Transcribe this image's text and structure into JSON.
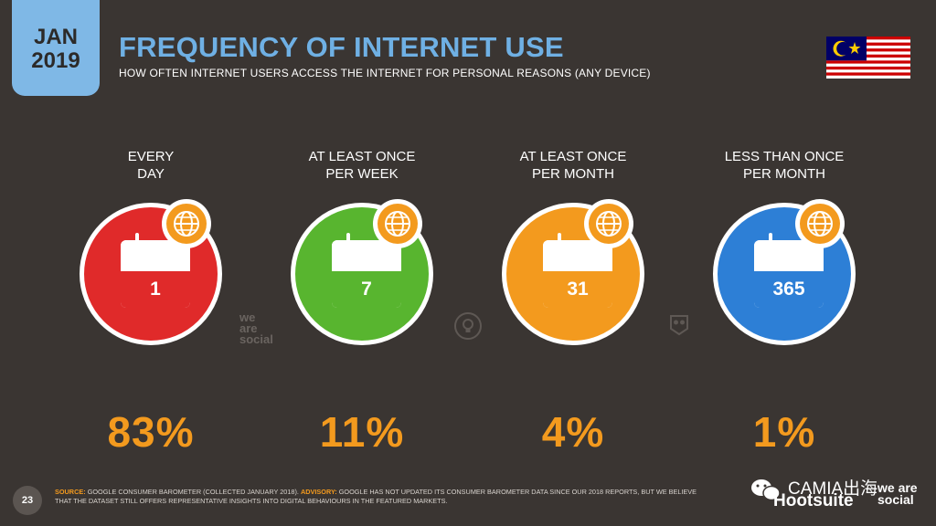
{
  "header": {
    "date_month": "JAN",
    "date_year": "2019",
    "title": "FREQUENCY OF INTERNET USE",
    "subtitle": "HOW OFTEN INTERNET USERS ACCESS THE INTERNET FOR PERSONAL REASONS (ANY DEVICE)"
  },
  "colors": {
    "background": "#3a3532",
    "accent_orange": "#f39a1e",
    "title_blue": "#6fb0e4"
  },
  "flag_icon": "malaysia-flag",
  "categories": [
    {
      "label_line1": "EVERY",
      "label_line2": "DAY",
      "calendar_value": "1",
      "percent": "83%",
      "color": "#e02a2a",
      "icon": "calendar-icon"
    },
    {
      "label_line1": "AT LEAST ONCE",
      "label_line2": "PER WEEK",
      "calendar_value": "7",
      "percent": "11%",
      "color": "#58b52f",
      "icon": "calendar-icon"
    },
    {
      "label_line1": "AT LEAST ONCE",
      "label_line2": "PER MONTH",
      "calendar_value": "31",
      "percent": "4%",
      "color": "#f39a1e",
      "icon": "calendar-icon"
    },
    {
      "label_line1": "LESS THAN ONCE",
      "label_line2": "PER MONTH",
      "calendar_value": "365",
      "percent": "1%",
      "color": "#2d7fd6",
      "icon": "calendar-icon"
    }
  ],
  "watermarks": {
    "we": "we",
    "are": "are",
    "social": "social"
  },
  "footer": {
    "page_number": "23",
    "source_label": "SOURCE:",
    "source_text": "GOOGLE CONSUMER BAROMETER (COLLECTED JANUARY 2018).",
    "advisory_label": "ADVISORY:",
    "advisory_text": "GOOGLE HAS NOT UPDATED ITS CONSUMER BAROMETER DATA SINCE OUR 2018 REPORTS, BUT WE BELIEVE THAT THE DATASET STILL OFFERS REPRESENTATIVE INSIGHTS INTO DIGITAL BEHAVIOURS IN THE FEATURED MARKETS.",
    "brand_overlay": "CAMIA出海",
    "hootsuite": "Hootsuite",
    "we_are_social": "we are social"
  }
}
